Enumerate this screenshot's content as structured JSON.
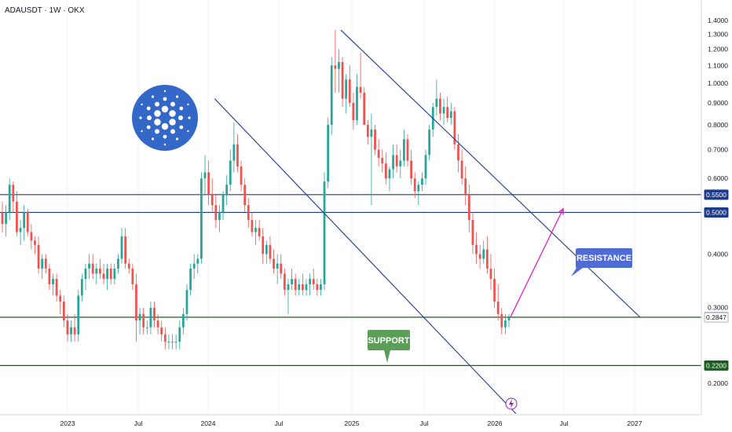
{
  "chart_data": {
    "type": "candlestick",
    "title": "ADAUSDT · 1W · OKX",
    "x_tick_labels": [
      "2023",
      "Jul",
      "2024",
      "Jul",
      "2025",
      "Jul",
      "2026",
      "Jul",
      "2027"
    ],
    "y_tick_labels": [
      "1.4000",
      "1.3000",
      "1.2000",
      "1.1000",
      "1.0000",
      "0.9000",
      "0.8000",
      "0.7000",
      "0.6000",
      "0.5000",
      "0.4000",
      "0.3000",
      "0.2000"
    ],
    "ylim": [
      0.18,
      1.43
    ],
    "y_scale": "log",
    "xlim": [
      "2022-08-01",
      "2027-06-01"
    ],
    "levels": [
      {
        "label": "0.5500",
        "value": 0.55,
        "kind": "resistance",
        "color": "#1e3a8a"
      },
      {
        "label": "0.5000",
        "value": 0.5,
        "kind": "resistance",
        "color": "#1e3a8a"
      },
      {
        "label": "0.2850",
        "value": 0.285,
        "kind": "support",
        "color": "#1b5e20"
      },
      {
        "label": "0.2200",
        "value": 0.22,
        "kind": "support",
        "color": "#1b5e20"
      }
    ],
    "last_price": {
      "label": "0.2847",
      "value": 0.2847
    },
    "annotations": [
      {
        "text": "RESISTANCE",
        "color": "#4f6bd6"
      },
      {
        "text": "SUPPORT",
        "color": "#5a9e58"
      }
    ],
    "channel_lines": [
      {
        "from": [
          "2024-01-15",
          0.92
        ],
        "to": [
          "2026-03-01",
          0.17
        ]
      },
      {
        "from": [
          "2024-12-05",
          1.33
        ],
        "to": [
          "2027-01-15",
          0.285
        ]
      }
    ],
    "projection_arrow": {
      "from": [
        "2026-02-15",
        0.285
      ],
      "to": [
        "2026-07-01",
        0.51
      ],
      "color": "#e020c8"
    },
    "series": [
      {
        "values": [
          [
            0.5,
            0.53,
            0.45,
            0.47
          ],
          [
            0.47,
            0.52,
            0.44,
            0.5
          ],
          [
            0.5,
            0.6,
            0.48,
            0.58
          ],
          [
            0.58,
            0.59,
            0.5,
            0.53
          ],
          [
            0.53,
            0.56,
            0.44,
            0.45
          ],
          [
            0.45,
            0.48,
            0.42,
            0.46
          ],
          [
            0.46,
            0.52,
            0.43,
            0.5
          ],
          [
            0.5,
            0.51,
            0.44,
            0.45
          ],
          [
            0.45,
            0.47,
            0.41,
            0.43
          ],
          [
            0.43,
            0.44,
            0.4,
            0.42
          ],
          [
            0.42,
            0.44,
            0.36,
            0.37
          ],
          [
            0.37,
            0.4,
            0.35,
            0.39
          ],
          [
            0.39,
            0.4,
            0.36,
            0.37
          ],
          [
            0.37,
            0.38,
            0.33,
            0.34
          ],
          [
            0.34,
            0.36,
            0.32,
            0.35
          ],
          [
            0.35,
            0.36,
            0.31,
            0.32
          ],
          [
            0.32,
            0.33,
            0.29,
            0.31
          ],
          [
            0.31,
            0.32,
            0.27,
            0.28
          ],
          [
            0.28,
            0.29,
            0.25,
            0.26
          ],
          [
            0.26,
            0.28,
            0.25,
            0.27
          ],
          [
            0.27,
            0.29,
            0.25,
            0.26
          ],
          [
            0.26,
            0.33,
            0.25,
            0.32
          ],
          [
            0.32,
            0.36,
            0.31,
            0.35
          ],
          [
            0.35,
            0.38,
            0.33,
            0.37
          ],
          [
            0.37,
            0.4,
            0.35,
            0.38
          ],
          [
            0.38,
            0.4,
            0.35,
            0.36
          ],
          [
            0.36,
            0.38,
            0.34,
            0.37
          ],
          [
            0.37,
            0.39,
            0.35,
            0.36
          ],
          [
            0.36,
            0.38,
            0.34,
            0.35
          ],
          [
            0.35,
            0.38,
            0.33,
            0.37
          ],
          [
            0.37,
            0.38,
            0.34,
            0.35
          ],
          [
            0.35,
            0.38,
            0.34,
            0.37
          ],
          [
            0.37,
            0.4,
            0.36,
            0.39
          ],
          [
            0.39,
            0.46,
            0.38,
            0.44
          ],
          [
            0.44,
            0.46,
            0.37,
            0.38
          ],
          [
            0.38,
            0.39,
            0.36,
            0.37
          ],
          [
            0.37,
            0.38,
            0.33,
            0.34
          ],
          [
            0.34,
            0.36,
            0.25,
            0.28
          ],
          [
            0.28,
            0.3,
            0.26,
            0.29
          ],
          [
            0.29,
            0.3,
            0.26,
            0.27
          ],
          [
            0.27,
            0.28,
            0.26,
            0.27
          ],
          [
            0.27,
            0.31,
            0.26,
            0.3
          ],
          [
            0.3,
            0.31,
            0.27,
            0.28
          ],
          [
            0.28,
            0.29,
            0.26,
            0.27
          ],
          [
            0.27,
            0.28,
            0.25,
            0.26
          ],
          [
            0.26,
            0.27,
            0.24,
            0.25
          ],
          [
            0.25,
            0.26,
            0.24,
            0.25
          ],
          [
            0.25,
            0.26,
            0.24,
            0.25
          ],
          [
            0.25,
            0.26,
            0.24,
            0.25
          ],
          [
            0.25,
            0.28,
            0.24,
            0.27
          ],
          [
            0.27,
            0.3,
            0.26,
            0.29
          ],
          [
            0.29,
            0.34,
            0.28,
            0.33
          ],
          [
            0.33,
            0.38,
            0.32,
            0.37
          ],
          [
            0.37,
            0.4,
            0.35,
            0.38
          ],
          [
            0.38,
            0.4,
            0.36,
            0.39
          ],
          [
            0.39,
            0.62,
            0.38,
            0.6
          ],
          [
            0.6,
            0.68,
            0.55,
            0.62
          ],
          [
            0.62,
            0.66,
            0.52,
            0.55
          ],
          [
            0.55,
            0.6,
            0.5,
            0.52
          ],
          [
            0.52,
            0.55,
            0.46,
            0.48
          ],
          [
            0.48,
            0.52,
            0.45,
            0.5
          ],
          [
            0.5,
            0.56,
            0.48,
            0.55
          ],
          [
            0.55,
            0.61,
            0.52,
            0.58
          ],
          [
            0.58,
            0.7,
            0.56,
            0.66
          ],
          [
            0.66,
            0.81,
            0.62,
            0.72
          ],
          [
            0.72,
            0.76,
            0.62,
            0.64
          ],
          [
            0.64,
            0.66,
            0.56,
            0.58
          ],
          [
            0.58,
            0.6,
            0.5,
            0.52
          ],
          [
            0.52,
            0.54,
            0.46,
            0.48
          ],
          [
            0.48,
            0.5,
            0.44,
            0.45
          ],
          [
            0.45,
            0.48,
            0.42,
            0.46
          ],
          [
            0.46,
            0.48,
            0.43,
            0.44
          ],
          [
            0.44,
            0.46,
            0.38,
            0.4
          ],
          [
            0.4,
            0.43,
            0.38,
            0.42
          ],
          [
            0.42,
            0.44,
            0.38,
            0.39
          ],
          [
            0.39,
            0.41,
            0.36,
            0.37
          ],
          [
            0.37,
            0.4,
            0.34,
            0.38
          ],
          [
            0.38,
            0.4,
            0.35,
            0.36
          ],
          [
            0.36,
            0.37,
            0.32,
            0.33
          ],
          [
            0.33,
            0.35,
            0.29,
            0.34
          ],
          [
            0.34,
            0.37,
            0.33,
            0.35
          ],
          [
            0.35,
            0.36,
            0.32,
            0.33
          ],
          [
            0.33,
            0.35,
            0.32,
            0.34
          ],
          [
            0.34,
            0.36,
            0.32,
            0.33
          ],
          [
            0.33,
            0.35,
            0.32,
            0.34
          ],
          [
            0.34,
            0.36,
            0.32,
            0.35
          ],
          [
            0.35,
            0.37,
            0.33,
            0.34
          ],
          [
            0.34,
            0.35,
            0.32,
            0.33
          ],
          [
            0.33,
            0.35,
            0.32,
            0.34
          ],
          [
            0.34,
            0.62,
            0.33,
            0.59
          ],
          [
            0.59,
            0.83,
            0.57,
            0.8
          ],
          [
            0.8,
            1.15,
            0.76,
            1.1
          ],
          [
            1.1,
            1.33,
            0.95,
            1.08
          ],
          [
            1.08,
            1.2,
            0.95,
            1.12
          ],
          [
            1.12,
            1.15,
            0.88,
            0.92
          ],
          [
            0.92,
            1.05,
            0.85,
            1.02
          ],
          [
            1.02,
            1.1,
            0.88,
            0.9
          ],
          [
            0.9,
            0.95,
            0.78,
            0.82
          ],
          [
            0.82,
            1.05,
            0.8,
            0.98
          ],
          [
            0.98,
            1.18,
            0.92,
            0.95
          ],
          [
            0.95,
            0.98,
            0.82,
            0.8
          ],
          [
            0.8,
            0.82,
            0.72,
            0.75
          ],
          [
            0.75,
            0.85,
            0.52,
            0.78
          ],
          [
            0.78,
            0.8,
            0.68,
            0.7
          ],
          [
            0.7,
            0.74,
            0.64,
            0.67
          ],
          [
            0.67,
            0.7,
            0.62,
            0.65
          ],
          [
            0.65,
            0.69,
            0.58,
            0.6
          ],
          [
            0.6,
            0.64,
            0.56,
            0.63
          ],
          [
            0.63,
            0.72,
            0.6,
            0.68
          ],
          [
            0.68,
            0.72,
            0.62,
            0.64
          ],
          [
            0.64,
            0.7,
            0.6,
            0.66
          ],
          [
            0.66,
            0.78,
            0.64,
            0.74
          ],
          [
            0.74,
            0.76,
            0.64,
            0.66
          ],
          [
            0.66,
            0.7,
            0.58,
            0.6
          ],
          [
            0.6,
            0.62,
            0.54,
            0.56
          ],
          [
            0.56,
            0.59,
            0.52,
            0.58
          ],
          [
            0.58,
            0.62,
            0.56,
            0.6
          ],
          [
            0.6,
            0.7,
            0.58,
            0.68
          ],
          [
            0.68,
            0.8,
            0.66,
            0.78
          ],
          [
            0.78,
            0.9,
            0.75,
            0.88
          ],
          [
            0.88,
            1.02,
            0.84,
            0.92
          ],
          [
            0.92,
            0.95,
            0.82,
            0.85
          ],
          [
            0.85,
            0.92,
            0.8,
            0.88
          ],
          [
            0.88,
            0.93,
            0.81,
            0.83
          ],
          [
            0.83,
            0.9,
            0.8,
            0.86
          ],
          [
            0.86,
            0.88,
            0.7,
            0.72
          ],
          [
            0.72,
            0.76,
            0.62,
            0.66
          ],
          [
            0.66,
            0.7,
            0.58,
            0.6
          ],
          [
            0.6,
            0.64,
            0.52,
            0.55
          ],
          [
            0.55,
            0.58,
            0.45,
            0.48
          ],
          [
            0.48,
            0.5,
            0.4,
            0.42
          ],
          [
            0.42,
            0.45,
            0.38,
            0.4
          ],
          [
            0.4,
            0.42,
            0.37,
            0.39
          ],
          [
            0.39,
            0.43,
            0.38,
            0.41
          ],
          [
            0.41,
            0.44,
            0.36,
            0.37
          ],
          [
            0.37,
            0.4,
            0.33,
            0.35
          ],
          [
            0.35,
            0.37,
            0.3,
            0.31
          ],
          [
            0.31,
            0.34,
            0.28,
            0.29
          ],
          [
            0.29,
            0.3,
            0.26,
            0.27
          ],
          [
            0.27,
            0.29,
            0.26,
            0.28
          ],
          [
            0.28,
            0.29,
            0.27,
            0.2847
          ]
        ]
      }
    ]
  }
}
